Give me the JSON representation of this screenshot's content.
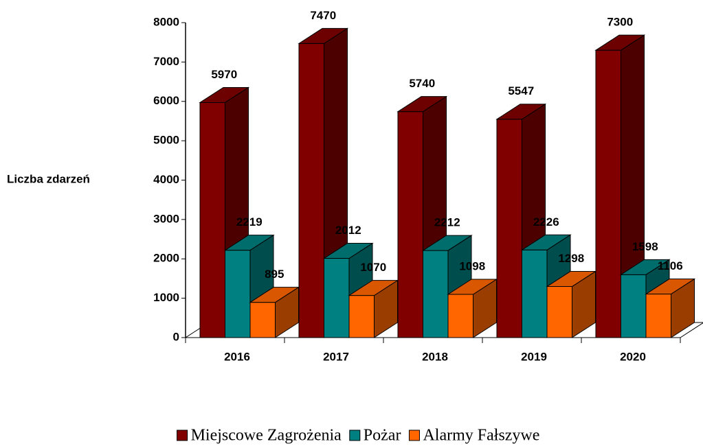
{
  "chart_data": {
    "type": "bar3d",
    "ylabel": "Liczba zdarzeń",
    "categories": [
      "2016",
      "2017",
      "2018",
      "2019",
      "2020"
    ],
    "series": [
      {
        "name": "Miejscowe Zagrożenia",
        "color": "#800000",
        "values": [
          5970,
          7470,
          5740,
          5547,
          7300
        ]
      },
      {
        "name": "Pożar",
        "color": "#008080",
        "values": [
          2219,
          2012,
          2212,
          2226,
          1598
        ]
      },
      {
        "name": "Alarmy Fałszywe",
        "color": "#ff6600",
        "values": [
          895,
          1070,
          1098,
          1298,
          1106
        ]
      }
    ],
    "ylim": [
      0,
      8000
    ],
    "yticks": [
      0,
      1000,
      2000,
      3000,
      4000,
      5000,
      6000,
      7000,
      8000
    ],
    "legend": "bottom"
  }
}
